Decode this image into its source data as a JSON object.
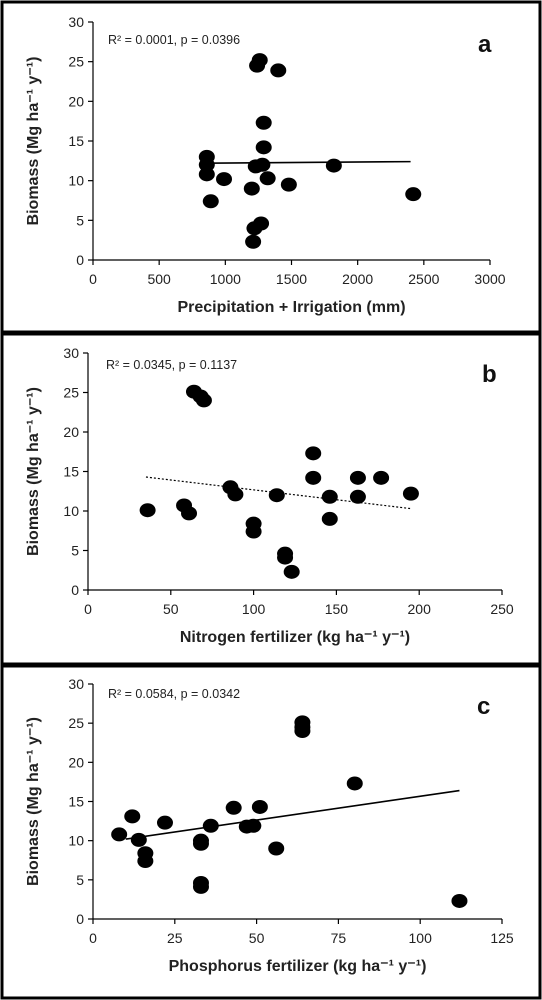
{
  "chart_data": [
    {
      "type": "scatter",
      "panel_label": "a",
      "stats": "R² = 0.0001, p = 0.0396",
      "xlabel": "Precipitation + Irrigation (mm)",
      "ylabel": "Biomass (Mg ha⁻¹ y⁻¹)",
      "xlim": [
        0,
        3000
      ],
      "ylim": [
        0,
        30
      ],
      "xticks": [
        0,
        500,
        1000,
        1500,
        2000,
        2500,
        3000
      ],
      "yticks": [
        0,
        5,
        10,
        15,
        20,
        25,
        30
      ],
      "grid": false,
      "trendline": {
        "style": "solid",
        "x": [
          850,
          2400
        ],
        "y": [
          12.2,
          12.4
        ]
      },
      "points": [
        {
          "x": 860,
          "y": 13.0
        },
        {
          "x": 860,
          "y": 12.0
        },
        {
          "x": 860,
          "y": 10.8
        },
        {
          "x": 890,
          "y": 7.4
        },
        {
          "x": 990,
          "y": 10.2
        },
        {
          "x": 1200,
          "y": 9.0
        },
        {
          "x": 1210,
          "y": 2.3
        },
        {
          "x": 1220,
          "y": 4.0
        },
        {
          "x": 1230,
          "y": 11.8
        },
        {
          "x": 1240,
          "y": 24.5
        },
        {
          "x": 1260,
          "y": 25.2
        },
        {
          "x": 1270,
          "y": 4.6
        },
        {
          "x": 1280,
          "y": 12.0
        },
        {
          "x": 1290,
          "y": 14.2
        },
        {
          "x": 1290,
          "y": 17.3
        },
        {
          "x": 1320,
          "y": 10.3
        },
        {
          "x": 1400,
          "y": 23.9
        },
        {
          "x": 1480,
          "y": 9.5
        },
        {
          "x": 1820,
          "y": 11.9
        },
        {
          "x": 2420,
          "y": 8.3
        }
      ]
    },
    {
      "type": "scatter",
      "panel_label": "b",
      "stats": "R² = 0.0345, p = 0.1137",
      "xlabel": "Nitrogen fertilizer (kg ha⁻¹ y⁻¹)",
      "ylabel": "Biomass (Mg ha⁻¹ y⁻¹)",
      "xlim": [
        0,
        250
      ],
      "ylim": [
        0,
        30
      ],
      "xticks": [
        0,
        50,
        100,
        150,
        200,
        250
      ],
      "yticks": [
        0,
        5,
        10,
        15,
        20,
        25,
        30
      ],
      "grid": false,
      "trendline": {
        "style": "dotted",
        "x": [
          35,
          195
        ],
        "y": [
          14.3,
          10.3
        ]
      },
      "points": [
        {
          "x": 36,
          "y": 10.1
        },
        {
          "x": 58,
          "y": 10.7
        },
        {
          "x": 61,
          "y": 9.7
        },
        {
          "x": 64,
          "y": 25.1
        },
        {
          "x": 68,
          "y": 24.5
        },
        {
          "x": 70,
          "y": 24.0
        },
        {
          "x": 86,
          "y": 13.0
        },
        {
          "x": 89,
          "y": 12.1
        },
        {
          "x": 100,
          "y": 8.4
        },
        {
          "x": 100,
          "y": 7.4
        },
        {
          "x": 114,
          "y": 12.0
        },
        {
          "x": 119,
          "y": 4.6
        },
        {
          "x": 119,
          "y": 4.1
        },
        {
          "x": 123,
          "y": 2.3
        },
        {
          "x": 136,
          "y": 17.3
        },
        {
          "x": 136,
          "y": 14.2
        },
        {
          "x": 146,
          "y": 11.8
        },
        {
          "x": 146,
          "y": 9.0
        },
        {
          "x": 163,
          "y": 14.2
        },
        {
          "x": 163,
          "y": 11.8
        },
        {
          "x": 177,
          "y": 14.2
        },
        {
          "x": 195,
          "y": 12.2
        }
      ]
    },
    {
      "type": "scatter",
      "panel_label": "c",
      "stats": "R² = 0.0584, p = 0.0342",
      "xlabel": "Phosphorus fertilizer (kg ha⁻¹ y⁻¹)",
      "ylabel": "Biomass (Mg ha⁻¹ y⁻¹)",
      "xlim": [
        0,
        125
      ],
      "ylim": [
        0,
        30
      ],
      "xticks": [
        0,
        25,
        50,
        75,
        100,
        125
      ],
      "yticks": [
        0,
        5,
        10,
        15,
        20,
        25,
        30
      ],
      "grid": false,
      "trendline": {
        "style": "solid",
        "x": [
          10,
          112
        ],
        "y": [
          10.2,
          16.4
        ]
      },
      "points": [
        {
          "x": 8,
          "y": 10.8
        },
        {
          "x": 12,
          "y": 13.1
        },
        {
          "x": 14,
          "y": 10.1
        },
        {
          "x": 16,
          "y": 8.4
        },
        {
          "x": 16,
          "y": 7.4
        },
        {
          "x": 22,
          "y": 12.3
        },
        {
          "x": 33,
          "y": 10.0
        },
        {
          "x": 33,
          "y": 9.6
        },
        {
          "x": 33,
          "y": 4.6
        },
        {
          "x": 33,
          "y": 4.1
        },
        {
          "x": 36,
          "y": 11.9
        },
        {
          "x": 43,
          "y": 14.2
        },
        {
          "x": 47,
          "y": 11.8
        },
        {
          "x": 49,
          "y": 11.9
        },
        {
          "x": 51,
          "y": 14.3
        },
        {
          "x": 56,
          "y": 9.0
        },
        {
          "x": 64,
          "y": 25.1
        },
        {
          "x": 64,
          "y": 24.5
        },
        {
          "x": 64,
          "y": 24.0
        },
        {
          "x": 80,
          "y": 17.3
        },
        {
          "x": 112,
          "y": 2.3
        }
      ]
    }
  ]
}
